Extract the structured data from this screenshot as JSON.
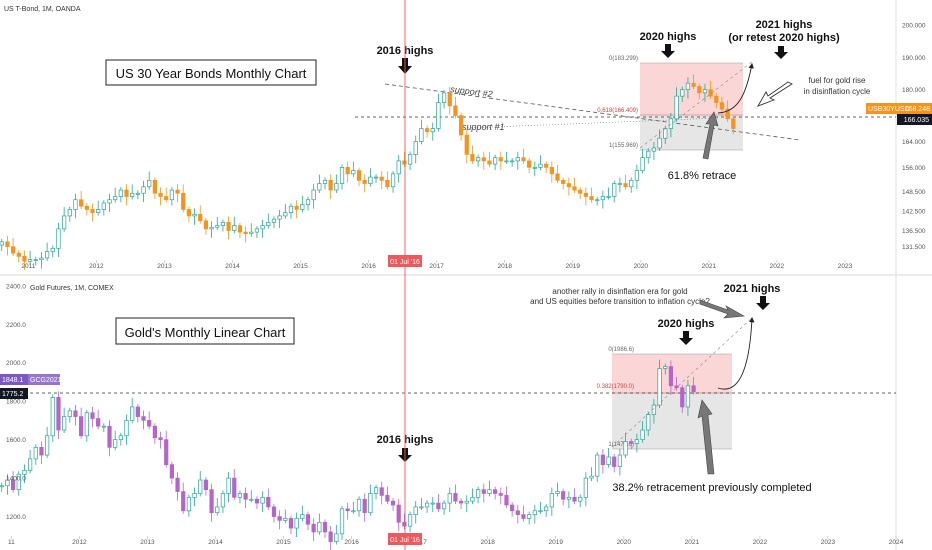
{
  "colors": {
    "up": "#26a69a",
    "down_bond": "#f7931a",
    "down_gold": "#b565c8",
    "vline": "#f2575b",
    "fib_red": "#fbd2d2",
    "fib_gray": "#e0e0e0",
    "price_tag_bond": "#f7931a",
    "price_tag_gold": "#7e57c2",
    "black_tag": "#131722",
    "axis_text": "#555555"
  },
  "top_panel": {
    "symbol_label": "US T-Bond, 1M, OANDA",
    "title_box": "US 30 Year Bonds Monthly Chart",
    "y_ticks": [
      "200.000",
      "190.000",
      "180.000",
      "172.000",
      "164.000",
      "156.000",
      "148.500",
      "142.500",
      "136.500",
      "131.500"
    ],
    "x_ticks": [
      "2011",
      "2012",
      "2013",
      "2014",
      "2015",
      "2016",
      "2017",
      "2018",
      "2019",
      "2020",
      "2021",
      "2022",
      "2023"
    ],
    "price_tag_symbol": "USB30YUSD",
    "price_tag_value": "168.248",
    "dashed_level_value": "166.035",
    "date_marker": "01 Jul '16",
    "annotations": {
      "highs_2016": "2016 highs",
      "highs_2020": "2020 highs",
      "highs_2021_line1": "2021 highs",
      "highs_2021_line2": "(or retest 2020 highs)",
      "support2": "support #2",
      "support1": "support #1",
      "fuel_line1": "fuel for gold rise",
      "fuel_line2": "in disinflation cycle",
      "retrace": "61.8% retrace"
    },
    "fib_labels": {
      "top": "0(183.299)",
      "mid": "0.618(166.409)",
      "bottom": "1(155.969)"
    }
  },
  "bottom_panel": {
    "symbol_label": "Gold Futures, 1M, COMEX",
    "title_box": "Gold's Monthly Linear Chart",
    "y_ticks": [
      "2400.0",
      "2200.0",
      "2000.0",
      "1800.0",
      "1600.0",
      "1400.0",
      "1200.0"
    ],
    "x_ticks": [
      "11",
      "2012",
      "2013",
      "2014",
      "2015",
      "2016",
      "2017",
      "2018",
      "2019",
      "2020",
      "2021",
      "2022",
      "2023",
      "2024"
    ],
    "price_tag_value": "1848.1",
    "price_tag_symbol": "GCG2021",
    "dashed_level_value": "1775.2",
    "date_marker": "01 Jul '16",
    "annotations": {
      "rally_line1": "another rally in disinflation era for gold",
      "rally_line2": "and US equities before transition to inflation cycle?",
      "highs_2021": "2021 highs",
      "highs_2020": "2020 highs",
      "highs_2016": "2016 highs",
      "retracement": "38.2% retracement previously completed"
    },
    "fib_labels": {
      "top": "0(1986.6)",
      "mid": "0.382(1790.0)",
      "bottom": "1(1471.0)"
    }
  },
  "chart_data": [
    {
      "type": "candlestick",
      "title": "US 30 Year Bonds Monthly Chart",
      "source": "US T-Bond, 1M, OANDA",
      "ylim": [
        128,
        204
      ],
      "x_range": [
        "2010-08",
        "2023-10"
      ],
      "start": "2010-08",
      "closes": [
        133,
        131.5,
        129.5,
        128.5,
        127,
        127.5,
        127.5,
        128,
        130,
        131,
        137,
        141,
        143,
        146,
        144,
        143,
        142,
        143,
        145,
        146,
        147,
        149,
        147,
        148,
        148,
        150,
        152,
        148,
        147,
        146,
        149,
        148,
        143,
        141,
        141.5,
        139.5,
        137,
        137.5,
        138,
        139,
        136.5,
        138,
        136,
        135.5,
        136,
        137,
        138,
        139,
        140,
        141,
        142,
        144,
        143,
        144.5,
        146,
        149,
        151,
        152,
        149,
        151,
        156,
        154,
        155,
        152,
        151,
        153,
        153,
        152,
        150,
        154,
        158,
        157,
        160,
        164,
        168,
        167,
        168,
        176,
        179,
        175,
        172,
        166,
        160,
        158,
        159,
        158,
        157,
        159,
        158,
        158,
        158,
        159,
        158,
        156,
        156,
        157,
        156,
        154,
        152,
        151,
        150,
        149,
        148,
        147,
        146,
        146,
        147,
        147,
        151,
        151,
        150,
        152,
        155,
        159,
        161,
        162,
        165,
        168,
        171,
        178,
        180,
        182,
        181,
        179,
        180,
        178,
        176,
        174,
        171,
        168
      ],
      "fib_levels": {
        "0": 183.299,
        "0.618": 166.409,
        "1": 155.969
      },
      "reference_levels": {
        "current_price": 168.248,
        "dashed_level": 166.035
      }
    },
    {
      "type": "candlestick",
      "title": "Gold's Monthly Linear Chart",
      "source": "Gold Futures, 1M, COMEX",
      "ylim": [
        1130,
        2420
      ],
      "x_range": [
        "2010-11",
        "2024-01"
      ],
      "start": "2010-11",
      "closes": [
        1360,
        1390,
        1340,
        1420,
        1440,
        1500,
        1560,
        1520,
        1620,
        1820,
        1650,
        1720,
        1750,
        1720,
        1620,
        1740,
        1710,
        1670,
        1670,
        1560,
        1600,
        1620,
        1700,
        1770,
        1720,
        1700,
        1670,
        1610,
        1600,
        1470,
        1400,
        1330,
        1230,
        1300,
        1320,
        1390,
        1340,
        1220,
        1250,
        1320,
        1400,
        1300,
        1320,
        1290,
        1290,
        1270,
        1300,
        1250,
        1200,
        1180,
        1190,
        1140,
        1190,
        1210,
        1160,
        1120,
        1170,
        1120,
        1070,
        1110,
        1240,
        1230,
        1230,
        1290,
        1220,
        1320,
        1350,
        1310,
        1280,
        1260,
        1170,
        1150,
        1210,
        1250,
        1250,
        1270,
        1270,
        1240,
        1270,
        1320,
        1280,
        1270,
        1280,
        1300,
        1340,
        1320,
        1340,
        1320,
        1310,
        1260,
        1230,
        1210,
        1190,
        1210,
        1230,
        1230,
        1250,
        1320,
        1330,
        1290,
        1300,
        1280,
        1300,
        1400,
        1410,
        1520,
        1470,
        1510,
        1460,
        1520,
        1590,
        1580,
        1600,
        1650,
        1730,
        1780,
        1970,
        1980,
        1880,
        1870,
        1770,
        1880,
        1850
      ],
      "fib_levels": {
        "0": 1986.6,
        "0.382": 1790.0,
        "1": 1471.0
      },
      "reference_levels": {
        "current_price": 1848.1,
        "dashed_level": 1775.2
      }
    }
  ]
}
